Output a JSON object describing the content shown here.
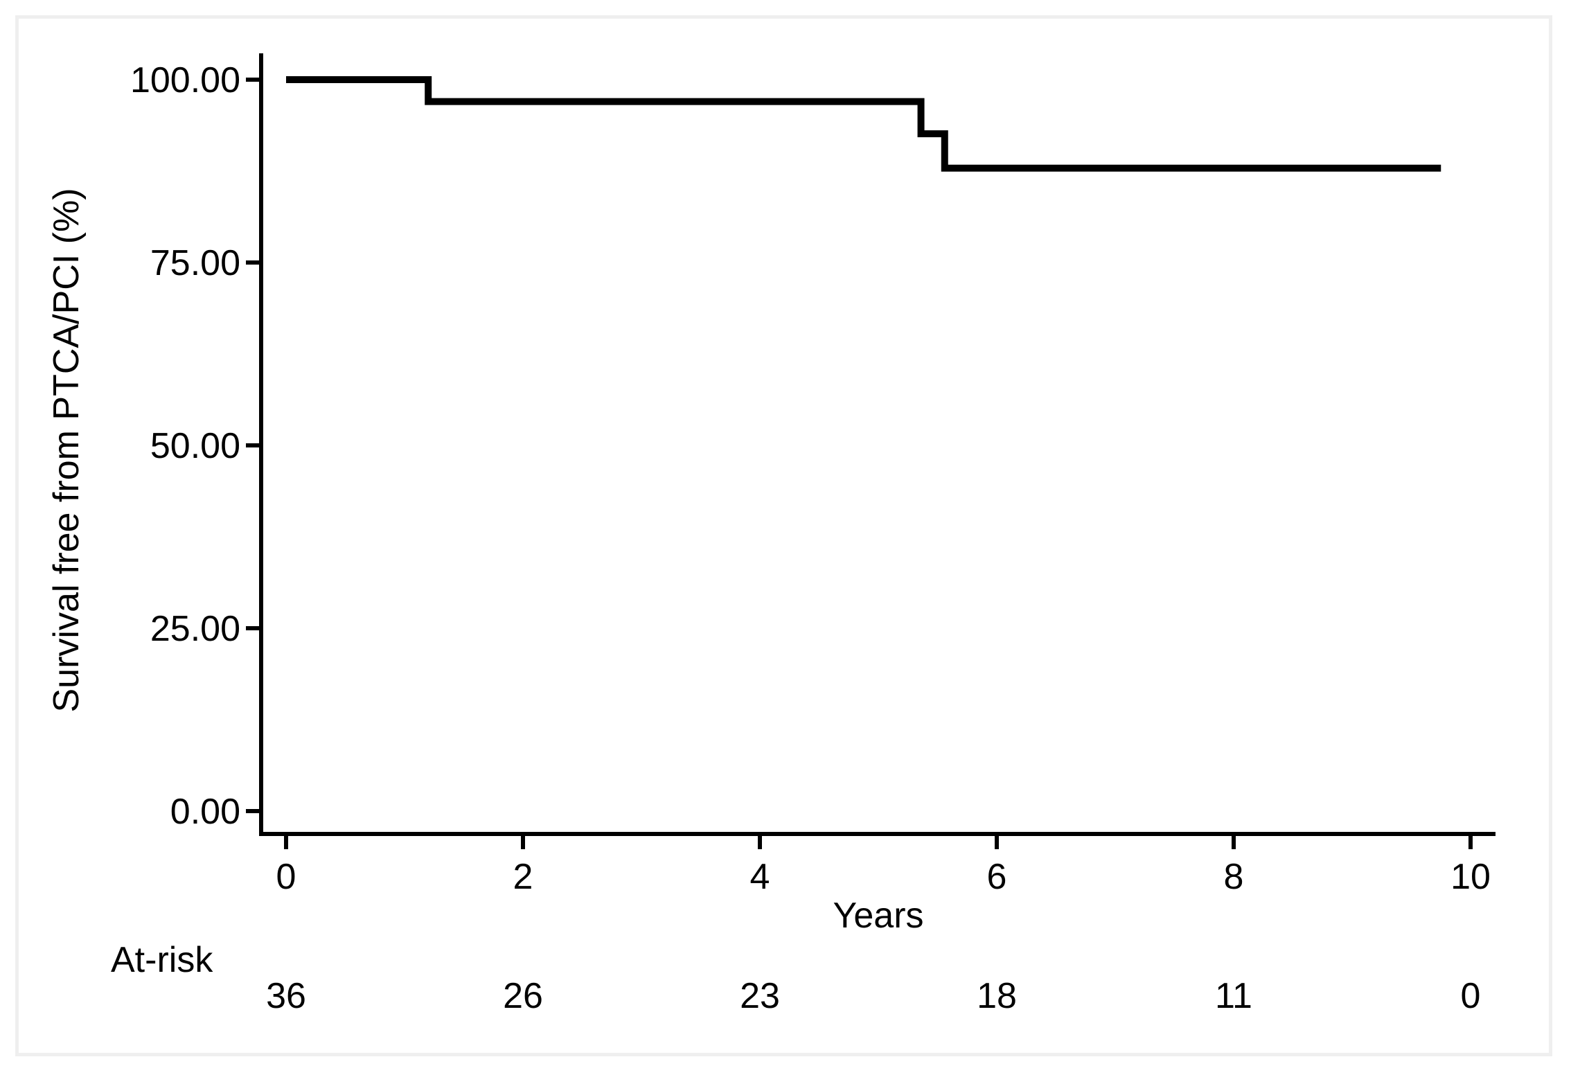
{
  "chart_data": {
    "type": "line",
    "line_style": "step-after",
    "title": "",
    "xlabel": "Years",
    "ylabel": "Survival free from PTCA/PCI (%)",
    "xlim": [
      0,
      10
    ],
    "ylim": [
      0,
      100
    ],
    "grid": false,
    "legend": "none",
    "background_color": "#ffffff",
    "frame_color": "#efefef",
    "line_color": "#000000",
    "xticks": [
      {
        "v": 0,
        "label": "0"
      },
      {
        "v": 2,
        "label": "2"
      },
      {
        "v": 4,
        "label": "4"
      },
      {
        "v": 6,
        "label": "6"
      },
      {
        "v": 8,
        "label": "8"
      },
      {
        "v": 10,
        "label": "10"
      }
    ],
    "yticks": [
      {
        "v": 0,
        "label": "0.00"
      },
      {
        "v": 25,
        "label": "25.00"
      },
      {
        "v": 50,
        "label": "50.00"
      },
      {
        "v": 75,
        "label": "75.00"
      },
      {
        "v": 100,
        "label": "100.00"
      }
    ],
    "series": [
      {
        "name": "Survival free from PTCA/PCI",
        "points": [
          [
            0,
            100
          ],
          [
            1.2,
            97.0
          ],
          [
            5.36,
            92.6
          ],
          [
            5.56,
            87.9
          ],
          [
            9.75,
            87.9
          ]
        ]
      }
    ],
    "at_risk": {
      "label": "At-risk",
      "times": [
        0,
        2,
        4,
        6,
        8,
        10
      ],
      "counts": [
        36,
        26,
        23,
        18,
        11,
        0
      ]
    }
  }
}
